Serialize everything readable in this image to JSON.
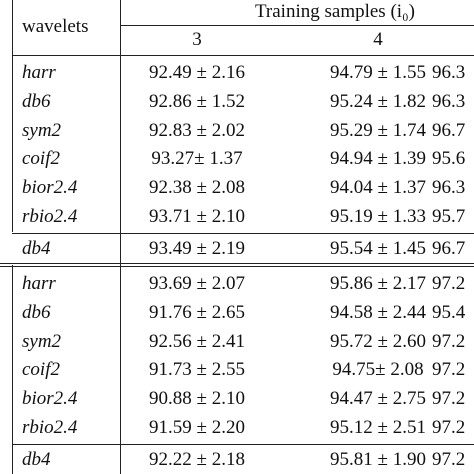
{
  "header": {
    "wavelets": "wavelets",
    "training": "Training samples (i₀)",
    "cols": [
      "3",
      "4"
    ]
  },
  "blocks": [
    {
      "rows": [
        [
          "harr",
          "92.49 ± 2.16",
          "94.79 ± 1.55",
          "96.3"
        ],
        [
          "db6",
          "92.86 ± 1.52",
          "95.24 ± 1.82",
          "96.3"
        ],
        [
          "sym2",
          "92.83 ± 2.02",
          "95.29 ± 1.74",
          "96.7"
        ],
        [
          "coif2",
          "93.27± 1.37",
          "94.94 ± 1.39",
          "95.6"
        ],
        [
          "bior2.4",
          "92.38 ± 2.08",
          "94.04 ± 1.37",
          "96.3"
        ],
        [
          "rbio2.4",
          "93.71 ± 2.10",
          "95.19 ± 1.33",
          "95.7"
        ]
      ],
      "db4": [
        "db4",
        "93.49 ± 2.19",
        "95.54 ± 1.45",
        "96.7"
      ]
    },
    {
      "rows": [
        [
          "harr",
          "93.69 ± 2.07",
          "95.86 ± 2.17",
          "97.2"
        ],
        [
          "db6",
          "91.76 ± 2.65",
          "94.58 ± 2.44",
          "95.4"
        ],
        [
          "sym2",
          "92.56 ± 2.41",
          "95.72 ± 2.60",
          "97.2"
        ],
        [
          "coif2",
          "91.73 ± 2.55",
          "94.75± 2.08",
          "97.2"
        ],
        [
          "bior2.4",
          "90.88 ± 2.10",
          "94.47 ± 2.75",
          "97.2"
        ],
        [
          "rbio2.4",
          "91.59 ± 2.20",
          "95.12 ± 2.51",
          "97.2"
        ]
      ],
      "db4": [
        "db4",
        "92.22 ± 2.18",
        "95.81 ± 1.90",
        "97.2"
      ]
    }
  ]
}
